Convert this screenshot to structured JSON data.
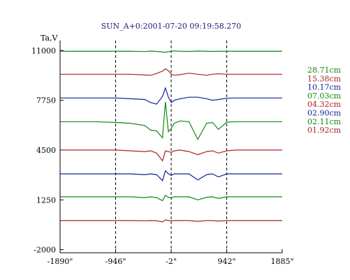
{
  "chart_data": {
    "type": "line",
    "title": "SUN_A+0:2001-07-20 09:19:58.270",
    "ylabel": "Ta,V",
    "xlabel": "",
    "x_ticks": [
      {
        "value": -1890,
        "label": "-1890\""
      },
      {
        "value": -946,
        "label": "-946\""
      },
      {
        "value": -2,
        "label": "-2\""
      },
      {
        "value": 942,
        "label": "942\""
      },
      {
        "value": 1885,
        "label": "1885\""
      }
    ],
    "y_ticks": [
      {
        "value": 11000,
        "label": "11000"
      },
      {
        "value": 7750,
        "label": "7750"
      },
      {
        "value": 4500,
        "label": "4500"
      },
      {
        "value": 1250,
        "label": "1250"
      },
      {
        "value": -2000,
        "label": "-2000"
      }
    ],
    "xlim": [
      -1890,
      1885
    ],
    "ylim": [
      -2200,
      11650
    ],
    "vertical_guides": [
      -946,
      -2,
      942
    ],
    "legend_position": "right",
    "x": [
      -1890,
      -1300,
      -946,
      -700,
      -450,
      -350,
      -250,
      -150,
      -100,
      -50,
      0,
      50,
      150,
      300,
      450,
      600,
      700,
      800,
      942,
      1100,
      1300,
      1500,
      1885
    ],
    "series": [
      {
        "name": "28.71cm",
        "color": "#118811",
        "values": [
          10950,
          10950,
          10950,
          10950,
          10930,
          10960,
          10940,
          10900,
          10880,
          10920,
          10950,
          10970,
          10950,
          10940,
          10960,
          10950,
          10940,
          10950,
          10950,
          10950,
          10950,
          10950,
          10950
        ]
      },
      {
        "name": "15.38cm",
        "color": "#aa2222",
        "values": [
          9450,
          9450,
          9450,
          9450,
          9400,
          9380,
          9500,
          9650,
          9800,
          9680,
          9450,
          9380,
          9420,
          9520,
          9450,
          9380,
          9450,
          9480,
          9450,
          9450,
          9450,
          9450,
          9450
        ]
      },
      {
        "name": "10.17cm",
        "color": "#112299",
        "values": [
          7900,
          7900,
          7900,
          7850,
          7800,
          7600,
          7500,
          8000,
          8550,
          7950,
          7600,
          7750,
          7850,
          7950,
          7950,
          7850,
          7750,
          7800,
          7880,
          7900,
          7900,
          7900,
          7900
        ]
      },
      {
        "name": "07.03cm",
        "color": "#118811",
        "values": [
          6350,
          6350,
          6300,
          6250,
          6100,
          5800,
          5750,
          5300,
          7650,
          5700,
          5900,
          6250,
          6400,
          6350,
          5200,
          6250,
          6300,
          5850,
          6320,
          6350,
          6350,
          6350,
          6350
        ]
      },
      {
        "name": "04.32cm",
        "color": "#aa2222",
        "values": [
          4500,
          4500,
          4500,
          4450,
          4400,
          4450,
          4300,
          3800,
          4450,
          4400,
          4350,
          4450,
          4500,
          4400,
          4200,
          4400,
          4450,
          4300,
          4450,
          4500,
          4500,
          4500,
          4500
        ]
      },
      {
        "name": "02.90cm",
        "color": "#112299",
        "values": [
          2950,
          2950,
          2950,
          2950,
          2900,
          2950,
          2900,
          2500,
          3150,
          2950,
          2850,
          2950,
          2950,
          2950,
          2550,
          2900,
          2950,
          2750,
          2950,
          2950,
          2950,
          2950,
          2950
        ]
      },
      {
        "name": "02.11cm",
        "color": "#118811",
        "values": [
          1450,
          1450,
          1450,
          1450,
          1400,
          1450,
          1400,
          1200,
          1550,
          1420,
          1380,
          1450,
          1450,
          1450,
          1250,
          1420,
          1450,
          1350,
          1450,
          1450,
          1450,
          1450,
          1450
        ]
      },
      {
        "name": "01.92cm",
        "color": "#aa2222",
        "values": [
          -100,
          -100,
          -100,
          -100,
          -110,
          -100,
          -110,
          -180,
          -50,
          -100,
          -110,
          -100,
          -100,
          -100,
          -150,
          -100,
          -100,
          -130,
          -100,
          -100,
          -100,
          -100,
          -100
        ]
      }
    ],
    "colors": {
      "axis": "#000000",
      "guide": "#000000",
      "title": "#1a1a7a"
    }
  }
}
